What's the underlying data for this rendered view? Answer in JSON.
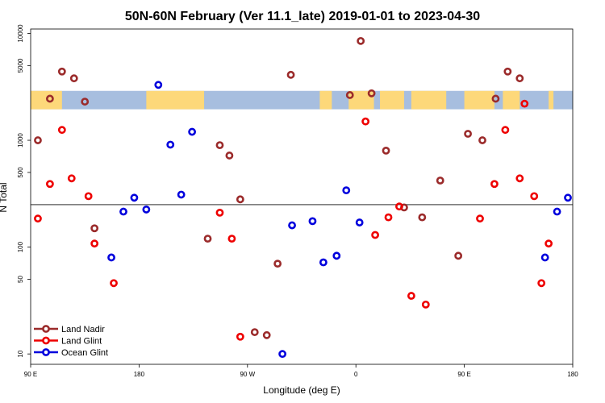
{
  "chart_data": {
    "type": "scatter",
    "title": "50N-60N February (Ver 11.1_late)   2019-01-01 to 2023-04-30",
    "xlabel": "Longitude (deg E)",
    "ylabel": "N Total",
    "yscale": "log",
    "xlim": [
      0,
      450
    ],
    "ylim": [
      8,
      11000
    ],
    "x_ticks": [
      {
        "value": 0,
        "label": "90 E"
      },
      {
        "value": 90,
        "label": "180"
      },
      {
        "value": 180,
        "label": "90 W"
      },
      {
        "value": 270,
        "label": "0"
      },
      {
        "value": 360,
        "label": "90 E"
      },
      {
        "value": 450,
        "label": "180"
      }
    ],
    "y_ticks": [
      {
        "value": 10,
        "label": "10"
      },
      {
        "value": 50,
        "label": "50"
      },
      {
        "value": 100,
        "label": "100"
      },
      {
        "value": 500,
        "label": "500"
      },
      {
        "value": 1000,
        "label": "1000"
      },
      {
        "value": 5000,
        "label": "5000"
      },
      {
        "value": 10000,
        "label": "10000"
      }
    ],
    "reference_line": {
      "y": 250
    },
    "map_strip": {
      "y_top": 2900,
      "y_bottom": 1950,
      "ocean_color": "#a7bedf",
      "land_color": "#fdd87a"
    },
    "legend": {
      "position": "bottom-left"
    },
    "series": [
      {
        "name": "Land Nadir",
        "color": "#9b2b2b",
        "x": [
          6,
          16,
          26,
          36,
          45,
          53,
          147,
          157,
          165,
          174,
          186,
          196,
          205,
          216,
          265,
          274,
          283,
          295,
          310,
          325,
          340,
          355,
          363,
          375,
          386,
          396,
          406
        ],
        "y": [
          1000,
          2450,
          4400,
          3800,
          2300,
          150,
          120,
          900,
          720,
          280,
          16,
          15,
          70,
          4100,
          2650,
          8500,
          2750,
          800,
          235,
          190,
          420,
          83,
          1150,
          1000,
          2450,
          4400,
          3800
        ]
      },
      {
        "name": "Land Glint",
        "color": "#ee0000",
        "x": [
          6,
          16,
          26,
          34,
          48,
          53,
          69,
          157,
          167,
          174,
          278,
          286,
          297,
          306,
          316,
          328,
          373,
          385,
          394,
          406,
          418,
          430,
          424,
          410
        ],
        "y": [
          185,
          390,
          1250,
          440,
          300,
          108,
          46,
          210,
          120,
          14.5,
          1500,
          130,
          190,
          240,
          35,
          29,
          185,
          390,
          1250,
          440,
          300,
          108,
          46,
          2200
        ]
      },
      {
        "name": "Ocean Glint",
        "color": "#0000dd",
        "x": [
          67,
          77,
          86,
          96,
          106,
          116,
          125,
          134,
          209,
          217,
          234,
          243,
          254,
          262,
          273,
          427,
          437,
          446
        ],
        "y": [
          80,
          215,
          290,
          225,
          3300,
          910,
          310,
          1200,
          10,
          160,
          175,
          72,
          83,
          340,
          170,
          80,
          215,
          290
        ]
      }
    ]
  }
}
